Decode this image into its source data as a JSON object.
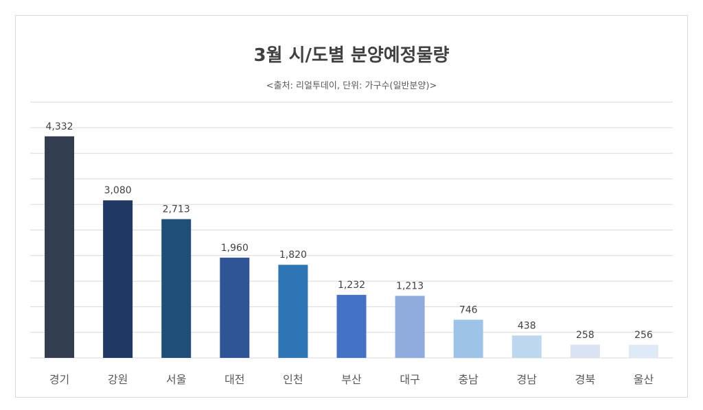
{
  "chart_data": {
    "type": "bar",
    "title": "3월 시/도별 분양예정물량",
    "subtitle": "<출처: 리얼투데이, 단위: 가구수(일반분양)>",
    "categories": [
      "경기",
      "강원",
      "서울",
      "대전",
      "인천",
      "부산",
      "대구",
      "충남",
      "경남",
      "경북",
      "울산"
    ],
    "values": [
      4332,
      3080,
      2713,
      1960,
      1820,
      1232,
      1213,
      746,
      438,
      258,
      256
    ],
    "value_labels": [
      "4,332",
      "3,080",
      "2,713",
      "1,960",
      "1,820",
      "1,232",
      "1,213",
      "746",
      "438",
      "258",
      "256"
    ],
    "bar_colors": [
      "#323D4F",
      "#1F3864",
      "#1F4E79",
      "#2F5597",
      "#2E75B6",
      "#4472C4",
      "#8FAADC",
      "#9DC3E6",
      "#BDD7EE",
      "#DAE3F3",
      "#DEEBF7"
    ],
    "ylim": [
      0,
      5000
    ],
    "gridlines": true,
    "legend": false,
    "xlabel": "",
    "ylabel": ""
  }
}
